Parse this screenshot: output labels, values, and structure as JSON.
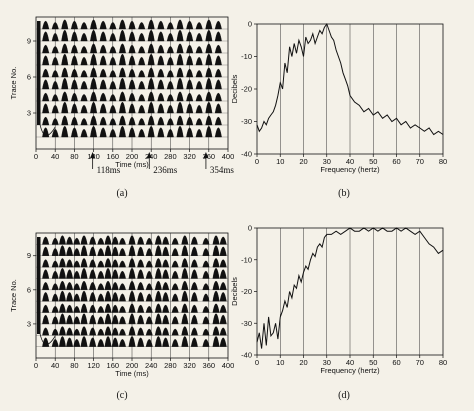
{
  "chart_data": [
    {
      "id": "a",
      "type": "seismic-wiggle",
      "panel_label": "(a)",
      "xlabel": "Time (ms)",
      "ylabel": "Trace No.",
      "xlim": [
        0,
        400
      ],
      "ylim": [
        0,
        11
      ],
      "xticks": [
        0,
        40,
        80,
        120,
        160,
        200,
        240,
        280,
        320,
        360,
        400
      ],
      "yticks": [
        3,
        6,
        9
      ],
      "traces": 10,
      "pulse_times_ms": [
        0,
        20,
        40,
        60,
        80,
        100,
        120,
        140,
        160,
        180,
        200,
        220,
        240,
        260,
        280,
        300,
        320,
        340,
        360,
        380
      ],
      "annotations": [
        {
          "label": "118ms",
          "x": 118
        },
        {
          "label": "236ms",
          "x": 236
        },
        {
          "label": "354ms",
          "x": 354
        }
      ]
    },
    {
      "id": "b",
      "type": "line",
      "panel_label": "(b)",
      "xlabel": "Frequency (hertz)",
      "ylabel": "Decibels",
      "xlim": [
        0,
        80
      ],
      "ylim": [
        -40,
        0
      ],
      "xticks": [
        0,
        10,
        20,
        30,
        40,
        50,
        60,
        70,
        80
      ],
      "yticks": [
        0,
        -10,
        -20,
        -30,
        -40
      ],
      "grid": "vertical",
      "series": [
        {
          "x": [
            0,
            1,
            2,
            3,
            4,
            5,
            6,
            7,
            8,
            9,
            10,
            11,
            12,
            13,
            14,
            15,
            16,
            17,
            18,
            19,
            20,
            21,
            22,
            23,
            24,
            25,
            26,
            27,
            28,
            29,
            30,
            31,
            32,
            33,
            34,
            35,
            36,
            37,
            38,
            39,
            40,
            42,
            44,
            46,
            48,
            50,
            52,
            54,
            56,
            58,
            60,
            62,
            64,
            66,
            68,
            70,
            72,
            74,
            76,
            78,
            80
          ],
          "values": [
            -31,
            -33,
            -32,
            -30,
            -31,
            -29,
            -28,
            -27,
            -25,
            -22,
            -18,
            -20,
            -12,
            -15,
            -7,
            -10,
            -6,
            -9,
            -5,
            -7,
            -10,
            -4,
            -6,
            -5,
            -3,
            -6,
            -4,
            -2,
            -3,
            -1,
            0,
            -2,
            -4,
            -5,
            -8,
            -10,
            -12,
            -15,
            -17,
            -19,
            -22,
            -24,
            -25,
            -27,
            -26,
            -28,
            -27,
            -29,
            -28,
            -30,
            -29,
            -31,
            -30,
            -32,
            -31,
            -32,
            -33,
            -32,
            -34,
            -33,
            -34
          ]
        }
      ]
    },
    {
      "id": "c",
      "type": "seismic-wiggle",
      "panel_label": "(c)",
      "xlabel": "Time (ms)",
      "ylabel": "Trace No.",
      "xlim": [
        0,
        400
      ],
      "ylim": [
        0,
        11
      ],
      "xticks": [
        0,
        40,
        80,
        120,
        160,
        200,
        240,
        280,
        320,
        360,
        400
      ],
      "yticks": [
        3,
        6,
        9
      ],
      "traces": 10,
      "pulse_times_ms": [
        0,
        20,
        40,
        55,
        70,
        85,
        100,
        118,
        135,
        150,
        165,
        180,
        200,
        218,
        236,
        255,
        270,
        290,
        310,
        330,
        354,
        375,
        390
      ]
    },
    {
      "id": "d",
      "type": "line",
      "panel_label": "(d)",
      "xlabel": "Frequency (hertz)",
      "ylabel": "Decibels",
      "xlim": [
        0,
        80
      ],
      "ylim": [
        -40,
        0
      ],
      "xticks": [
        0,
        10,
        20,
        30,
        40,
        50,
        60,
        70,
        80
      ],
      "yticks": [
        0,
        -10,
        -20,
        -30,
        -40
      ],
      "grid": "vertical",
      "series": [
        {
          "x": [
            0,
            1,
            2,
            3,
            4,
            5,
            6,
            7,
            8,
            9,
            10,
            11,
            12,
            13,
            14,
            15,
            16,
            17,
            18,
            19,
            20,
            21,
            22,
            23,
            24,
            25,
            26,
            27,
            28,
            29,
            30,
            32,
            34,
            36,
            38,
            40,
            42,
            44,
            46,
            48,
            50,
            52,
            54,
            56,
            58,
            60,
            62,
            64,
            66,
            68,
            70,
            72,
            74,
            76,
            78,
            80
          ],
          "values": [
            -36,
            -33,
            -38,
            -30,
            -37,
            -28,
            -34,
            -33,
            -30,
            -35,
            -28,
            -26,
            -23,
            -25,
            -20,
            -22,
            -18,
            -19,
            -15,
            -17,
            -14,
            -12,
            -13,
            -10,
            -8,
            -9,
            -6,
            -5,
            -6,
            -3,
            -2,
            -2,
            -1,
            -2,
            -1,
            0,
            -1,
            -1,
            0,
            -1,
            0,
            -1,
            0,
            -1,
            -1,
            0,
            -1,
            0,
            -1,
            -2,
            -1,
            -3,
            -5,
            -6,
            -8,
            -7
          ]
        }
      ]
    }
  ]
}
